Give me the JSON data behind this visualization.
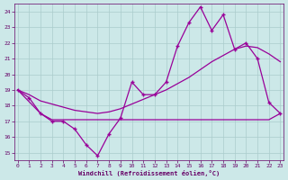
{
  "background_color": "#cce8e8",
  "grid_color": "#aacccc",
  "line_color": "#990099",
  "text_color": "#660066",
  "xlabel": "Windchill (Refroidissement éolien,°C)",
  "ylim": [
    14.5,
    24.5
  ],
  "xlim": [
    -0.3,
    23.3
  ],
  "yticks": [
    15,
    16,
    17,
    18,
    19,
    20,
    21,
    22,
    23,
    24
  ],
  "xticks": [
    0,
    1,
    2,
    3,
    4,
    5,
    6,
    7,
    8,
    9,
    10,
    11,
    12,
    13,
    14,
    15,
    16,
    17,
    18,
    19,
    20,
    21,
    22,
    23
  ],
  "jagged_x": [
    0,
    1,
    2,
    3,
    4,
    5,
    6,
    7,
    8,
    9,
    10,
    11,
    12,
    13,
    14,
    15,
    16,
    17,
    18,
    19,
    20,
    21,
    22,
    23
  ],
  "jagged_y": [
    19.0,
    18.5,
    17.5,
    17.0,
    17.0,
    16.5,
    15.5,
    14.8,
    16.2,
    17.2,
    19.5,
    18.7,
    18.7,
    19.5,
    21.8,
    23.3,
    24.3,
    22.8,
    23.8,
    21.6,
    22.0,
    21.0,
    18.2,
    17.5
  ],
  "flat_x": [
    0,
    2,
    3,
    4,
    5,
    6,
    7,
    8,
    9,
    10,
    11,
    12,
    13,
    14,
    15,
    16,
    17,
    18,
    19,
    20,
    21,
    22,
    23
  ],
  "flat_y": [
    19.0,
    17.5,
    17.1,
    17.1,
    17.1,
    17.1,
    17.1,
    17.1,
    17.1,
    17.1,
    17.1,
    17.1,
    17.1,
    17.1,
    17.1,
    17.1,
    17.1,
    17.1,
    17.1,
    17.1,
    17.1,
    17.1,
    17.5
  ],
  "diag_x": [
    0,
    1,
    2,
    3,
    4,
    5,
    6,
    7,
    8,
    9,
    10,
    11,
    12,
    13,
    14,
    15,
    16,
    17,
    18,
    19,
    20,
    21,
    22,
    23
  ],
  "diag_y": [
    19.0,
    18.7,
    18.3,
    18.1,
    17.9,
    17.7,
    17.6,
    17.5,
    17.6,
    17.8,
    18.1,
    18.4,
    18.7,
    19.0,
    19.4,
    19.8,
    20.3,
    20.8,
    21.2,
    21.6,
    21.8,
    21.7,
    21.3,
    20.8
  ]
}
